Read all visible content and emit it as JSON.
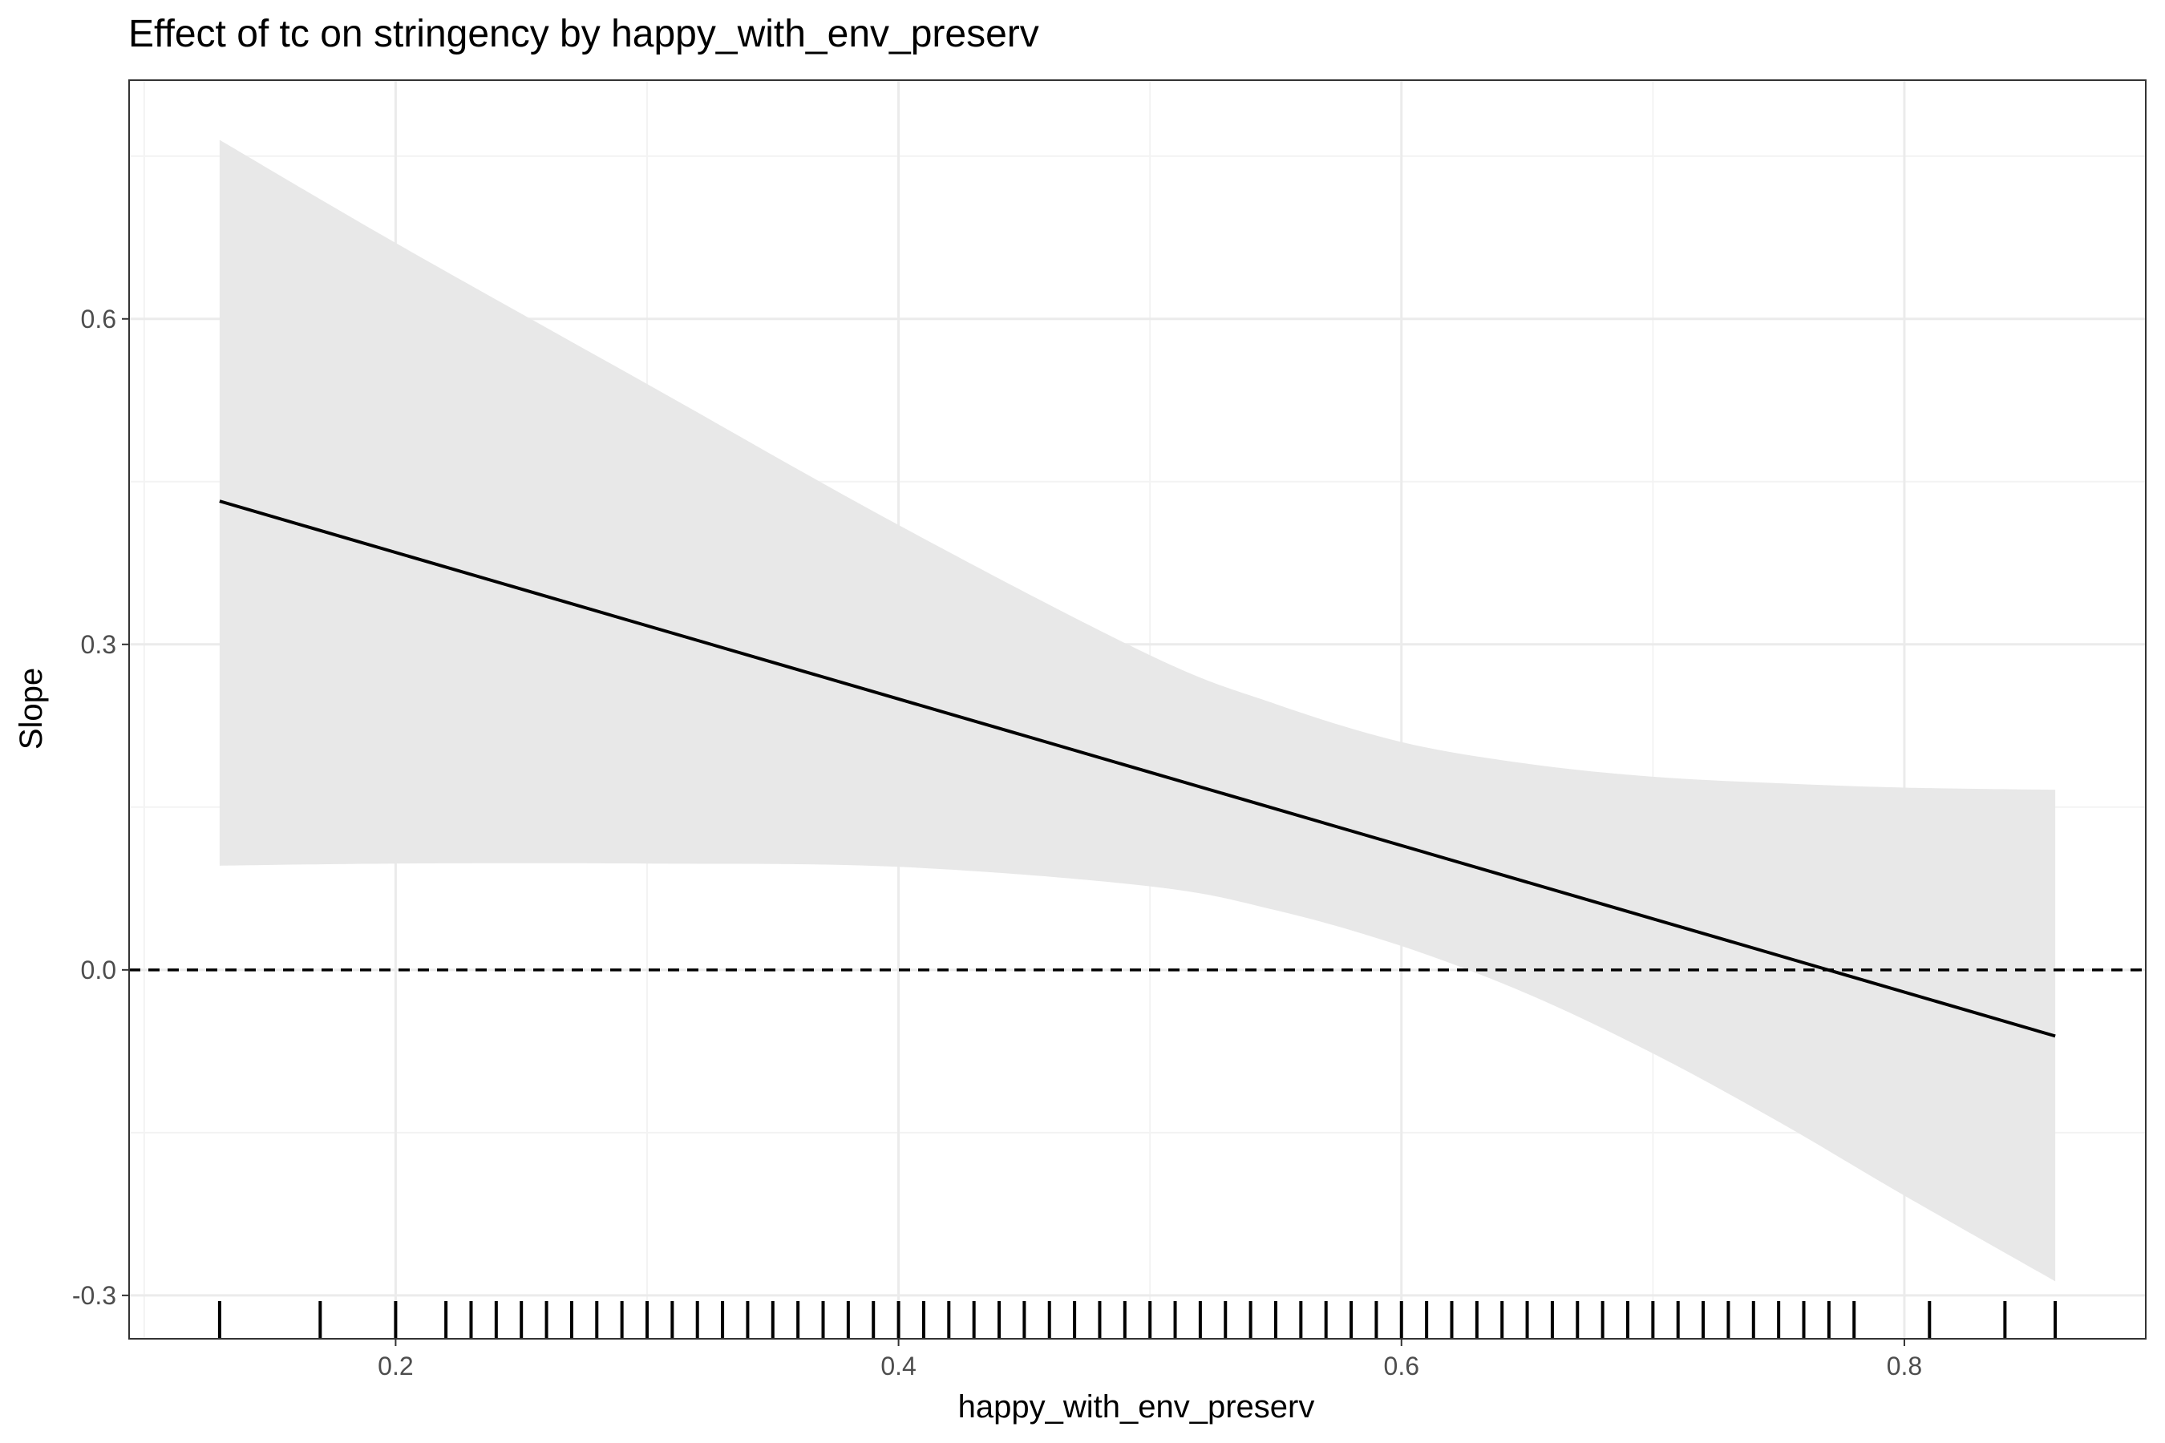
{
  "chart_data": {
    "type": "line",
    "title": "Effect of tc on stringency by happy_with_env_preserv",
    "xlabel": "happy_with_env_preserv",
    "ylabel": "Slope",
    "xlim": [
      0.094,
      0.896
    ],
    "ylim": [
      -0.34,
      0.82
    ],
    "x_ticks": [
      0.2,
      0.4,
      0.6,
      0.8
    ],
    "x_tick_labels": [
      "0.2",
      "0.4",
      "0.6",
      "0.8"
    ],
    "y_ticks": [
      -0.3,
      0.0,
      0.3,
      0.6
    ],
    "y_tick_labels": [
      "-0.3",
      "0.0",
      "0.3",
      "0.6"
    ],
    "grid": true,
    "reference_line": {
      "y": 0.0,
      "style": "dashed"
    },
    "series": [
      {
        "x": [
          0.13,
          0.86
        ],
        "values": [
          0.432,
          -0.061
        ]
      }
    ],
    "confidence_band": {
      "x": [
        0.13,
        0.2,
        0.3,
        0.4,
        0.5,
        0.55,
        0.6,
        0.65,
        0.7,
        0.75,
        0.8,
        0.86
      ],
      "upper": [
        0.765,
        0.67,
        0.54,
        0.41,
        0.29,
        0.245,
        0.21,
        0.19,
        0.178,
        0.172,
        0.168,
        0.166
      ],
      "lower": [
        0.096,
        0.098,
        0.098,
        0.095,
        0.077,
        0.055,
        0.022,
        -0.022,
        -0.077,
        -0.14,
        -0.208,
        -0.287
      ]
    },
    "rug_x": [
      0.13,
      0.17,
      0.2,
      0.22,
      0.23,
      0.24,
      0.25,
      0.26,
      0.27,
      0.28,
      0.29,
      0.3,
      0.31,
      0.32,
      0.33,
      0.34,
      0.35,
      0.36,
      0.37,
      0.38,
      0.39,
      0.4,
      0.41,
      0.42,
      0.43,
      0.44,
      0.45,
      0.46,
      0.47,
      0.48,
      0.49,
      0.5,
      0.51,
      0.52,
      0.53,
      0.54,
      0.55,
      0.56,
      0.57,
      0.58,
      0.59,
      0.6,
      0.61,
      0.62,
      0.63,
      0.64,
      0.65,
      0.66,
      0.67,
      0.68,
      0.69,
      0.7,
      0.71,
      0.72,
      0.73,
      0.74,
      0.75,
      0.76,
      0.77,
      0.78,
      0.81,
      0.84,
      0.86
    ],
    "colors": {
      "line": "#000000",
      "band": "#e8e8e8",
      "grid_major": "#ebebeb",
      "grid_minor": "#f3f3f3",
      "panel_border": "#333333",
      "tick_text": "#4d4d4d"
    }
  }
}
